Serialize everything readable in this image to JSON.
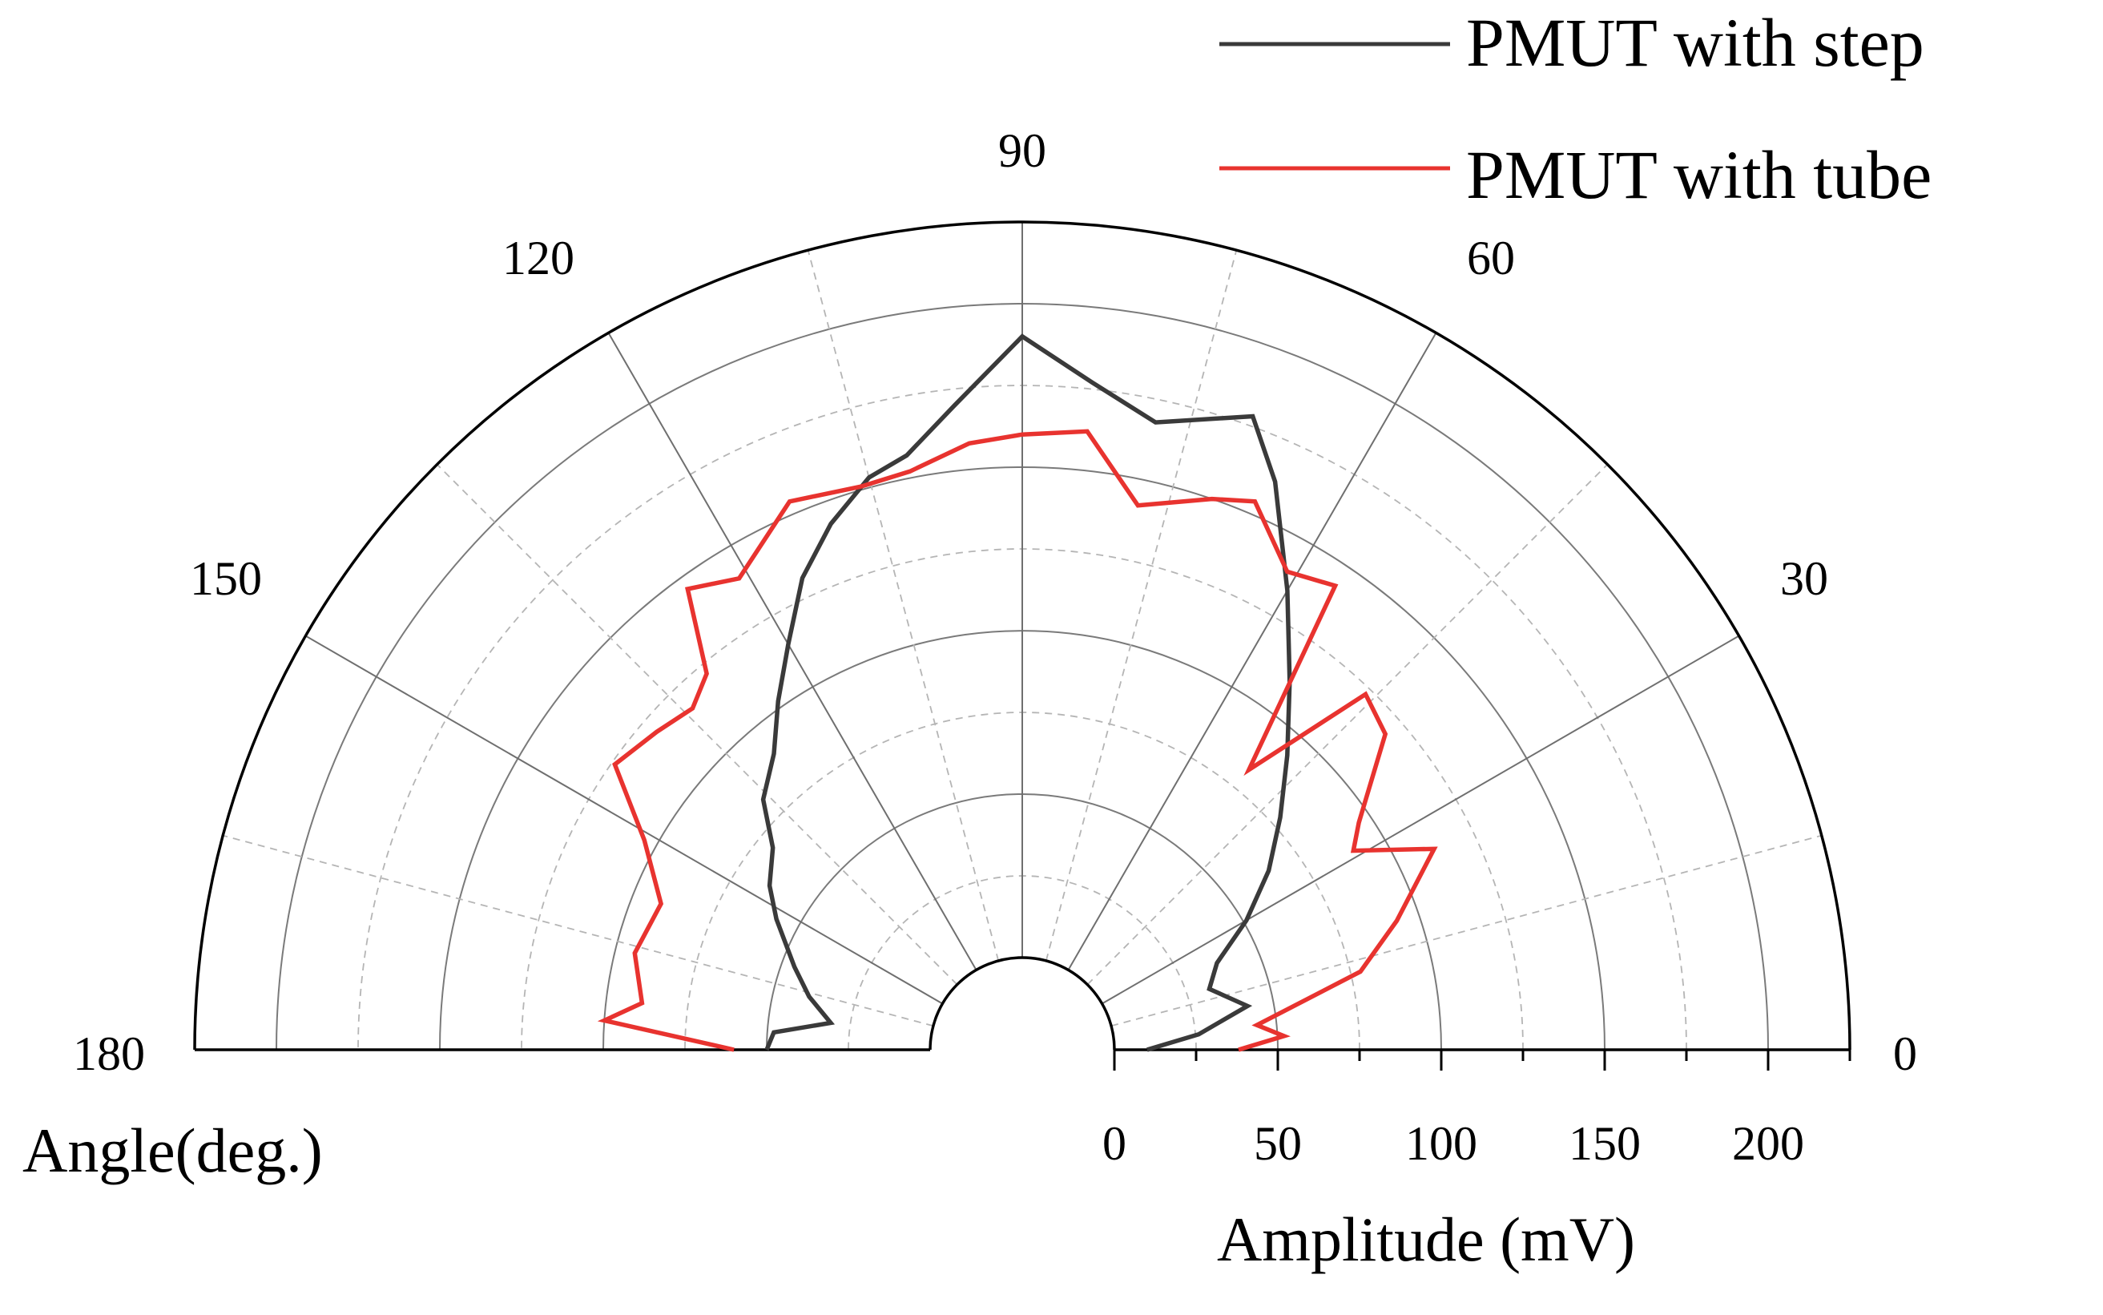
{
  "chart_data": {
    "type": "polar-line",
    "title": "",
    "angle_label": "Angle(deg.)",
    "radial_label": "Amplitude (mV)",
    "angle_range": [
      0,
      180
    ],
    "angle_ticks": [
      "0",
      "30",
      "60",
      "90",
      "120",
      "150",
      "180"
    ],
    "radial_range": [
      0,
      225
    ],
    "radial_ticks": [
      "0",
      "50",
      "100",
      "150",
      "200"
    ],
    "grid": true,
    "legend_position": "top-right",
    "colors": {
      "step": "#3a3a3a",
      "tube": "#e8332f"
    },
    "series": [
      {
        "name": "PMUT with step",
        "color": "#3a3a3a",
        "points": [
          [
            0,
            10
          ],
          [
            5,
            26
          ],
          [
            11,
            42
          ],
          [
            18,
            32
          ],
          [
            24,
            37
          ],
          [
            30,
            51
          ],
          [
            36,
            65
          ],
          [
            42,
            78
          ],
          [
            48,
            93
          ],
          [
            54,
            111
          ],
          [
            60,
            134
          ],
          [
            66,
            162
          ],
          [
            70,
            178
          ],
          [
            78,
            168
          ],
          [
            84,
            177
          ],
          [
            90,
            190
          ],
          [
            96,
            170
          ],
          [
            101,
            157
          ],
          [
            105,
            153
          ],
          [
            110,
            143
          ],
          [
            115,
            131
          ],
          [
            120,
            115
          ],
          [
            125,
            102
          ],
          [
            130,
            90
          ],
          [
            136,
            82
          ],
          [
            141,
            70
          ],
          [
            147,
            64
          ],
          [
            152,
            57
          ],
          [
            160,
            46
          ],
          [
            166,
            39
          ],
          [
            172,
            31
          ],
          [
            176,
            48
          ],
          [
            180,
            50
          ]
        ]
      },
      {
        "name": "PMUT with tube",
        "color": "#e8332f",
        "points": [
          [
            0,
            38
          ],
          [
            3,
            52
          ],
          [
            6,
            44
          ],
          [
            13,
            78
          ],
          [
            19,
            93
          ],
          [
            26,
            112
          ],
          [
            31,
            90
          ],
          [
            34,
            96
          ],
          [
            41,
            119
          ],
          [
            46,
            123
          ],
          [
            51,
            82
          ],
          [
            56,
            143
          ],
          [
            61,
            139
          ],
          [
            67,
            154
          ],
          [
            71,
            150
          ],
          [
            78,
            142
          ],
          [
            84,
            162
          ],
          [
            90,
            160
          ],
          [
            95,
            158
          ],
          [
            101,
            152
          ],
          [
            106,
            151
          ],
          [
            113,
            154
          ],
          [
            121,
            140
          ],
          [
            126,
            146
          ],
          [
            130,
            122
          ],
          [
            134,
            117
          ],
          [
            139,
            120
          ],
          [
            145,
            124
          ],
          [
            151,
            104
          ],
          [
            158,
            91
          ],
          [
            166,
            94
          ],
          [
            173,
            89
          ],
          [
            176,
            100
          ],
          [
            180,
            60
          ]
        ]
      }
    ]
  }
}
